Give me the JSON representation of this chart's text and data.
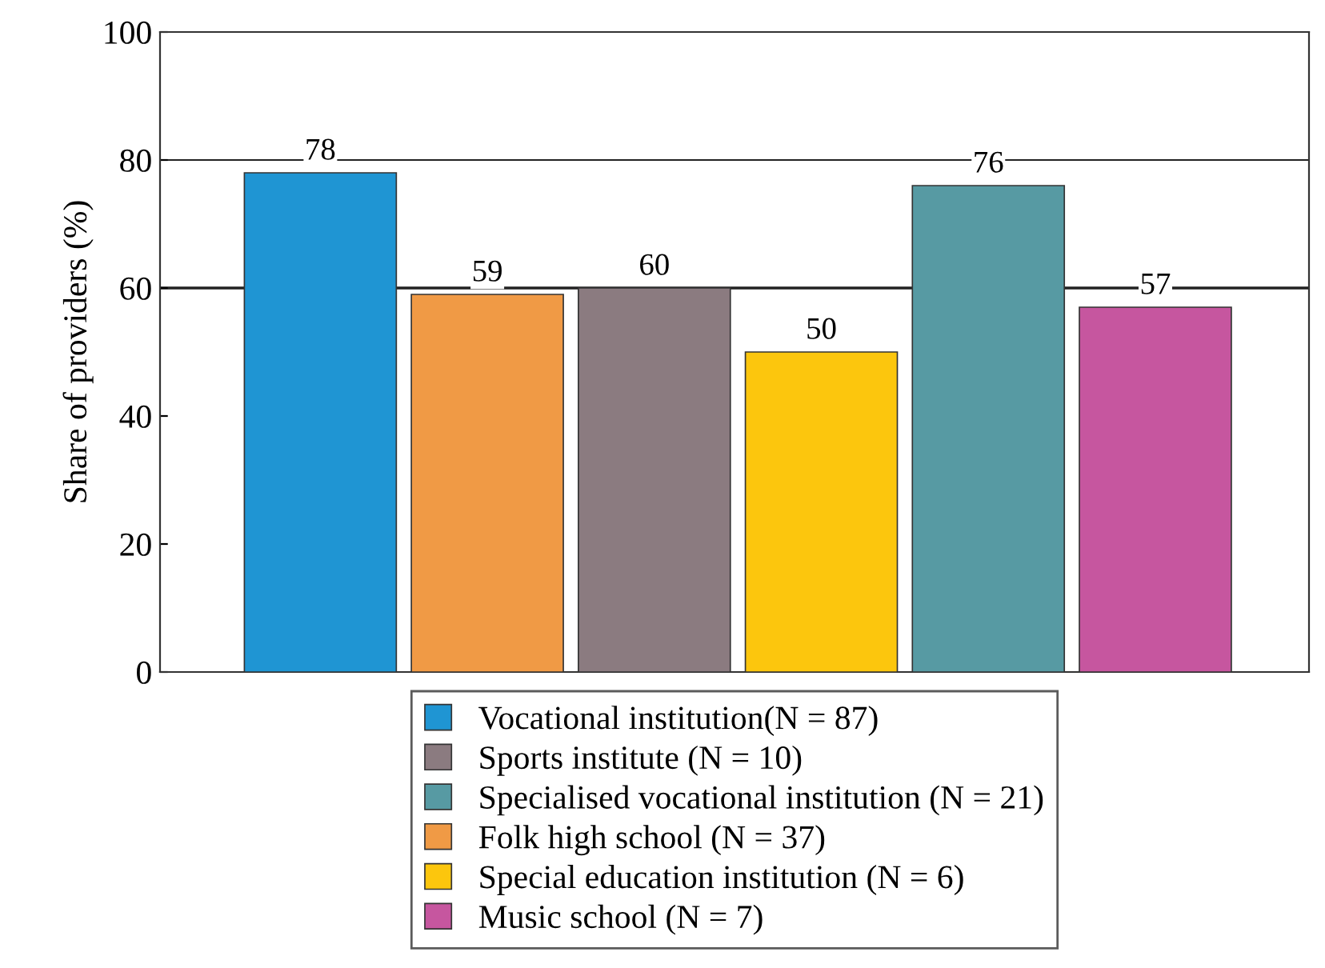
{
  "chart_data": {
    "type": "bar",
    "ylabel": "Share of providers (%)",
    "categories": [
      null,
      null,
      null,
      null,
      null,
      null
    ],
    "series": [
      {
        "name": "Vocational institution(N = 87)",
        "color": "#1f95d3",
        "values": [
          78,
          null,
          null,
          null,
          null,
          null
        ]
      },
      {
        "name": "Sports institute (N = 10)",
        "color": "#8b7b80",
        "values": [
          null,
          null,
          60,
          null,
          null,
          null
        ]
      },
      {
        "name": "Specialised vocational institution (N = 21)",
        "color": "#579aa3",
        "values": [
          null,
          null,
          null,
          null,
          76,
          null
        ]
      },
      {
        "name": "Folk high school (N = 37)",
        "color": "#f09a45",
        "values": [
          null,
          59,
          null,
          null,
          null,
          null
        ]
      },
      {
        "name": "Special education institution (N = 6)",
        "color": "#fcc60d",
        "values": [
          null,
          null,
          null,
          50,
          null,
          null
        ]
      },
      {
        "name": "Music school (N = 7)",
        "color": "#c6569f",
        "values": [
          null,
          null,
          null,
          null,
          null,
          57
        ]
      }
    ],
    "ylim": [
      0,
      100
    ],
    "yticks": [
      0,
      20,
      40,
      60,
      80,
      100
    ],
    "ref_lines": [
      {
        "axis": "y",
        "value": 80,
        "label": null
      },
      {
        "axis": "y",
        "value": 60,
        "label": null
      }
    ],
    "data_labels": true,
    "legend": "bottom",
    "grid": false
  }
}
